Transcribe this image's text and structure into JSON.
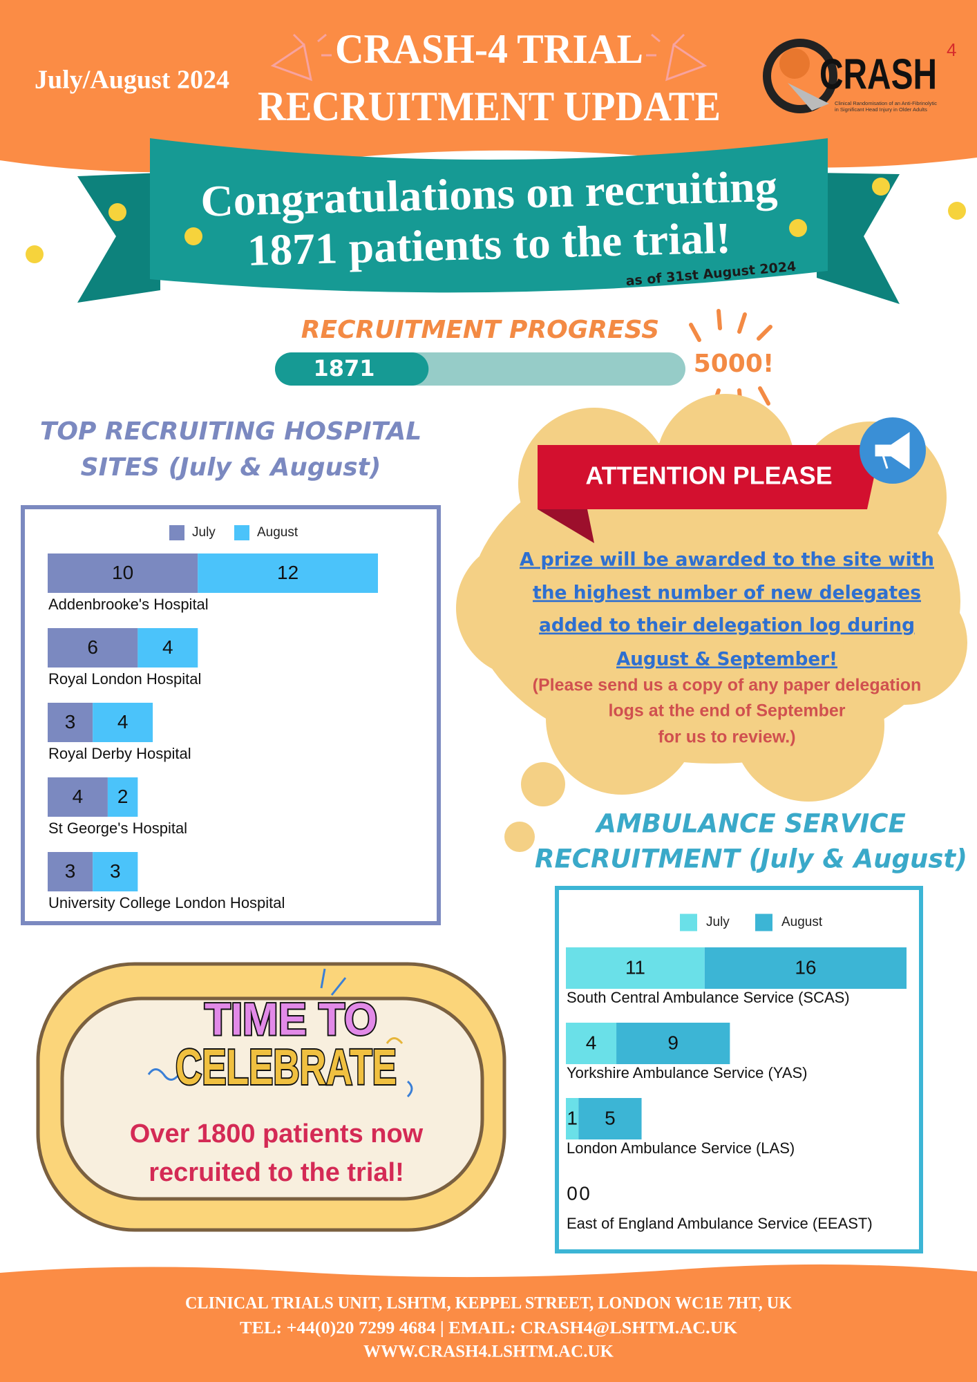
{
  "header": {
    "date": "July/August 2024",
    "title_lines": [
      "CRASH-4 TRIAL",
      "RECRUITMENT UPDATE"
    ],
    "logo": {
      "name": "CRASH",
      "number": "4",
      "tagline": [
        "Clinical Randomisation of an Anti-Fibrinolytic",
        "in Significant Head Injury in Older Adults"
      ]
    }
  },
  "banner": {
    "lines": [
      "Congratulations on recruiting",
      "1871 patients to the trial!"
    ],
    "note": "as of 31st August 2024"
  },
  "progress": {
    "title": "RECRUITMENT PROGRESS",
    "value": 1871,
    "target": {
      "value": 5000,
      "label": "5000!"
    }
  },
  "chart_data": [
    {
      "type": "bar",
      "orientation": "horizontal",
      "stacked": true,
      "legend": "top",
      "title_lines": [
        "TOP RECRUITING HOSPITAL",
        "SITES (July & August)"
      ],
      "categories": [
        "Addenbrooke's Hospital",
        "Royal London Hospital",
        "Royal Derby Hospital",
        "St George's Hospital",
        "University College London Hospital"
      ],
      "series": [
        {
          "name": "July",
          "color": "#7b89c0",
          "values": [
            10,
            6,
            3,
            4,
            3
          ]
        },
        {
          "name": "August",
          "color": "#4bc3fa",
          "values": [
            12,
            4,
            4,
            2,
            3
          ]
        }
      ]
    },
    {
      "type": "bar",
      "orientation": "horizontal",
      "stacked": true,
      "legend": "top",
      "title_lines": [
        "AMBULANCE SERVICE",
        "RECRUITMENT (July & August)"
      ],
      "categories": [
        "South Central Ambulance Service (SCAS)",
        "Yorkshire Ambulance Service (YAS)",
        "London Ambulance Service (LAS)",
        "East of England Ambulance Service (EEAST)"
      ],
      "series": [
        {
          "name": "July",
          "color": "#6ae0e8",
          "values": [
            11,
            4,
            1,
            0
          ]
        },
        {
          "name": "August",
          "color": "#3cb5d5",
          "values": [
            16,
            9,
            5,
            0
          ]
        }
      ]
    }
  ],
  "attention": {
    "title": "ATTENTION PLEASE",
    "prize_lines": [
      "A prize will be awarded to the site with",
      "the highest number of new delegates",
      "added to their delegation log during",
      "August & September!"
    ],
    "note_lines": [
      "(Please send us a copy of any paper delegation",
      "logs at the end of September",
      "for us to review.)"
    ]
  },
  "celebrate": {
    "art_lines": [
      "TIME TO",
      "CELEBRATE"
    ],
    "lines": [
      "Over 1800 patients now",
      "recruited to the trial!"
    ]
  },
  "footer": {
    "lines": [
      "CLINICAL TRIALS UNIT, LSHTM, KEPPEL STREET, LONDON WC1E 7HT, UK",
      "TEL: +44(0)20 7299 4684 | EMAIL: CRASH4@LSHTM.AC.UK",
      "WWW.CRASH4.LSHTM.AC.UK"
    ]
  }
}
